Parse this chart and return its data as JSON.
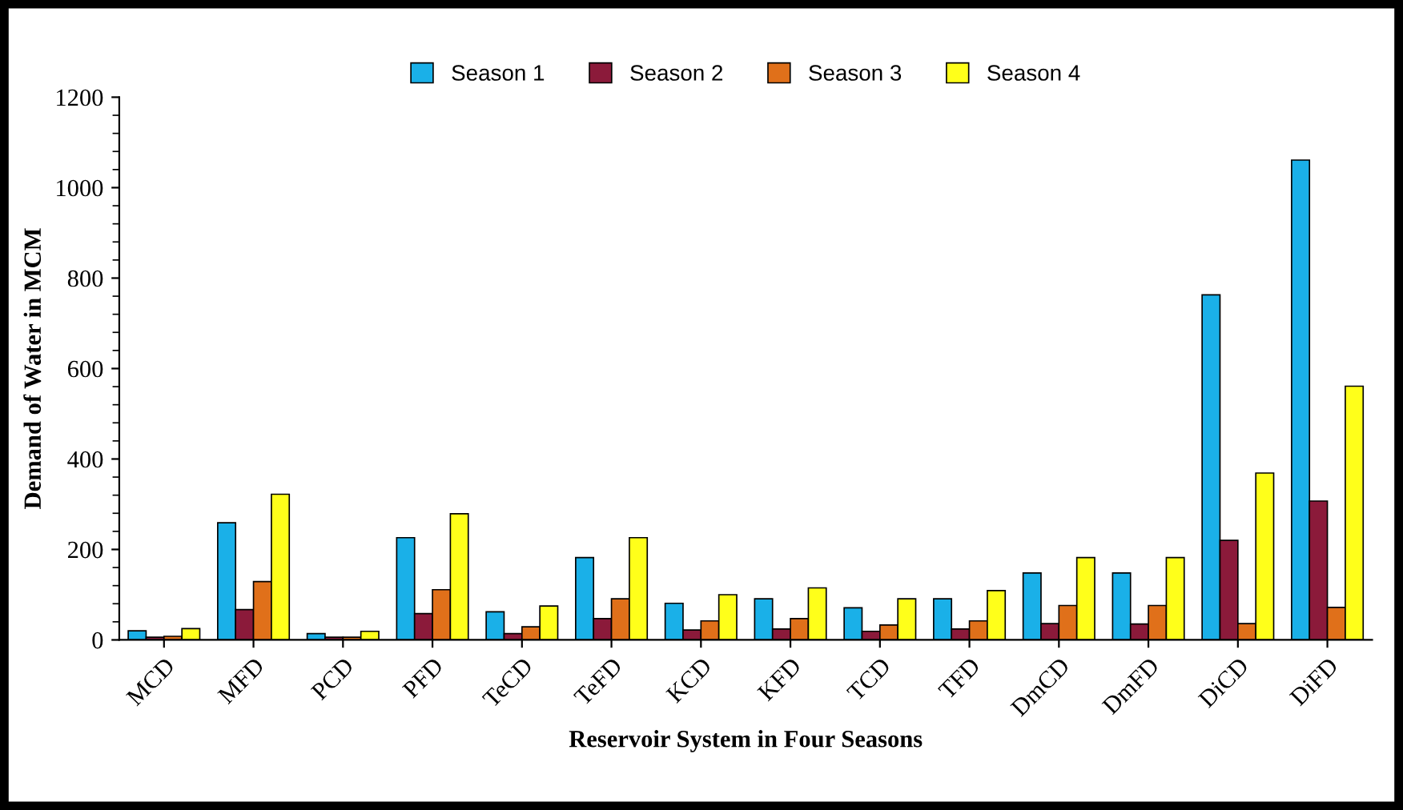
{
  "chart_data": {
    "type": "bar",
    "xlabel": "Reservoir System in Four Seasons",
    "ylabel": "Demand of Water in MCM",
    "categories": [
      "MCD",
      "MFD",
      "PCD",
      "PFD",
      "TeCD",
      "TeFD",
      "KCD",
      "KFD",
      "TCD",
      "TFD",
      "DmCD",
      "DmFD",
      "DiCD",
      "DiFD"
    ],
    "series": [
      {
        "name": "Season 1",
        "color": "#1ab0e8",
        "values": [
          20,
          259,
          14,
          226,
          62,
          182,
          81,
          91,
          71,
          91,
          148,
          148,
          763,
          1061
        ]
      },
      {
        "name": "Season 2",
        "color": "#8b1a3a",
        "values": [
          6,
          67,
          6,
          58,
          14,
          47,
          22,
          24,
          19,
          24,
          36,
          35,
          220,
          307
        ]
      },
      {
        "name": "Season 3",
        "color": "#e0701a",
        "values": [
          8,
          129,
          6,
          111,
          29,
          91,
          42,
          47,
          33,
          42,
          76,
          76,
          36,
          72
        ]
      },
      {
        "name": "Season 4",
        "color": "#ffff1a",
        "values": [
          25,
          322,
          19,
          279,
          75,
          226,
          100,
          115,
          91,
          109,
          182,
          182,
          369,
          561
        ]
      }
    ],
    "ylim": [
      0,
      1200
    ],
    "yticks": [
      0,
      200,
      400,
      600,
      800,
      1000,
      1200
    ],
    "grid": false,
    "legend": "top"
  }
}
